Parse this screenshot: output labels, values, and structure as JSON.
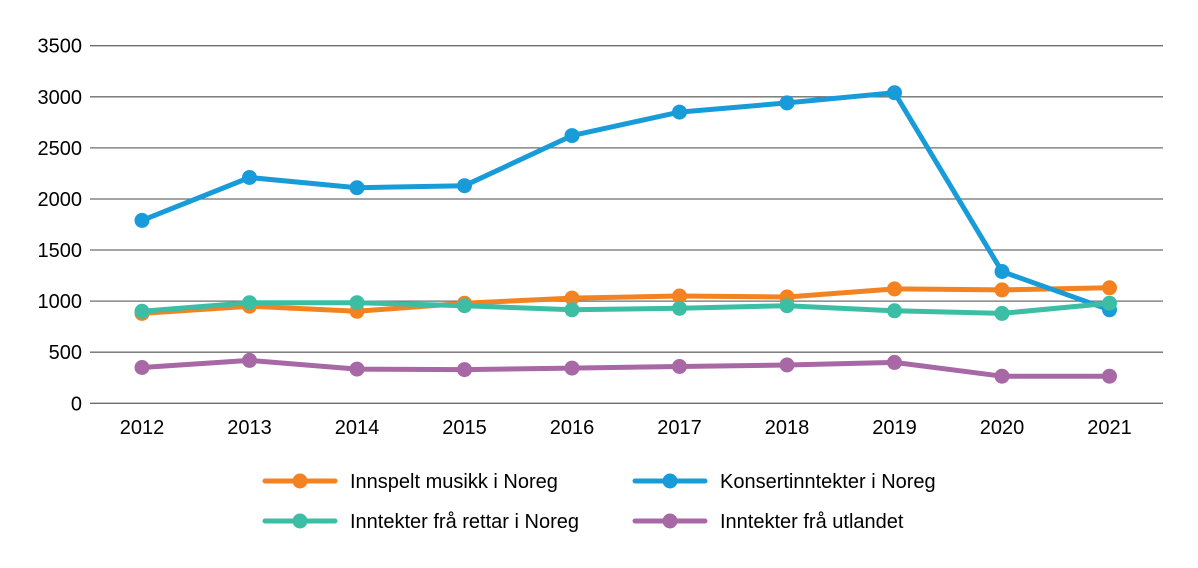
{
  "chart_data": {
    "type": "line",
    "title": "",
    "xlabel": "",
    "ylabel": "",
    "x": [
      "2012",
      "2013",
      "2014",
      "2015",
      "2016",
      "2017",
      "2018",
      "2019",
      "2020",
      "2021"
    ],
    "ylim": [
      0,
      3500
    ],
    "ytick_step": 500,
    "yticks": [
      0,
      500,
      1000,
      1500,
      2000,
      2500,
      3000,
      3500
    ],
    "grid": "horizontal",
    "legend_position": "bottom",
    "gridline_color": "#6e6e6e",
    "text_color": "#000000",
    "series": [
      {
        "name": "Innspelt musikk i Noreg",
        "color": "#F58220",
        "values": [
          880,
          950,
          900,
          980,
          1030,
          1050,
          1040,
          1120,
          1110,
          1130
        ]
      },
      {
        "name": "Konsertinntekter i Noreg",
        "color": "#189CD9",
        "values": [
          1790,
          2210,
          2110,
          2130,
          2620,
          2850,
          2940,
          3040,
          1290,
          915
        ]
      },
      {
        "name": "Inntekter frå rettar i Noreg",
        "color": "#3CBEA5",
        "values": [
          900,
          985,
          985,
          955,
          915,
          930,
          955,
          905,
          880,
          980
        ]
      },
      {
        "name": "Inntekter frå utlandet",
        "color": "#A768A5",
        "values": [
          350,
          420,
          335,
          330,
          345,
          360,
          375,
          400,
          265,
          265
        ]
      }
    ]
  }
}
